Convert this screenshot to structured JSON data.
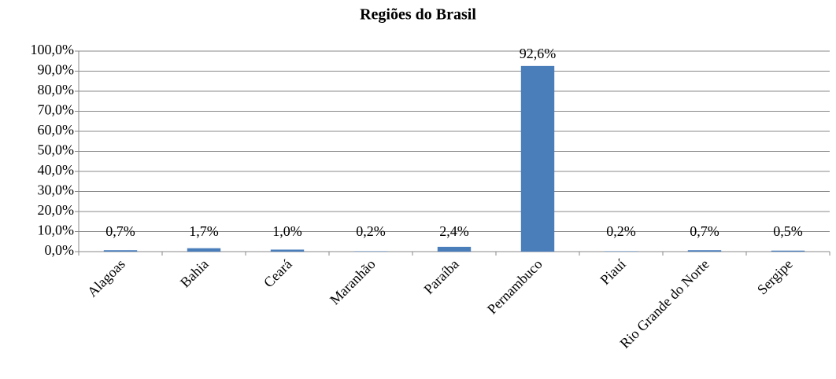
{
  "chart_data": {
    "type": "bar",
    "title": "Regiões do Brasil",
    "categories": [
      "Alagoas",
      "Bahia",
      "Ceará",
      "Maranhão",
      "Paraíba",
      "Pernambuco",
      "Piauí",
      "Rio Grande do Norte",
      "Sergipe"
    ],
    "values": [
      0.7,
      1.7,
      1.0,
      0.2,
      2.4,
      92.6,
      0.2,
      0.7,
      0.5
    ],
    "value_labels": [
      "0,7%",
      "1,7%",
      "1,0%",
      "0,2%",
      "2,4%",
      "92,6%",
      "0,2%",
      "0,7%",
      "0,5%"
    ],
    "color": "#4a7ebb",
    "ylim": [
      0,
      100
    ],
    "yticks": [
      {
        "value": 0,
        "label": "0,0%"
      },
      {
        "value": 10,
        "label": "10,0%"
      },
      {
        "value": 20,
        "label": "20,0%"
      },
      {
        "value": 30,
        "label": "30,0%"
      },
      {
        "value": 40,
        "label": "40,0%"
      },
      {
        "value": 50,
        "label": "50,0%"
      },
      {
        "value": 60,
        "label": "60,0%"
      },
      {
        "value": 70,
        "label": "70,0%"
      },
      {
        "value": 80,
        "label": "80,0%"
      },
      {
        "value": 90,
        "label": "90,0%"
      },
      {
        "value": 100,
        "label": "100,0%"
      }
    ],
    "grid": true
  }
}
